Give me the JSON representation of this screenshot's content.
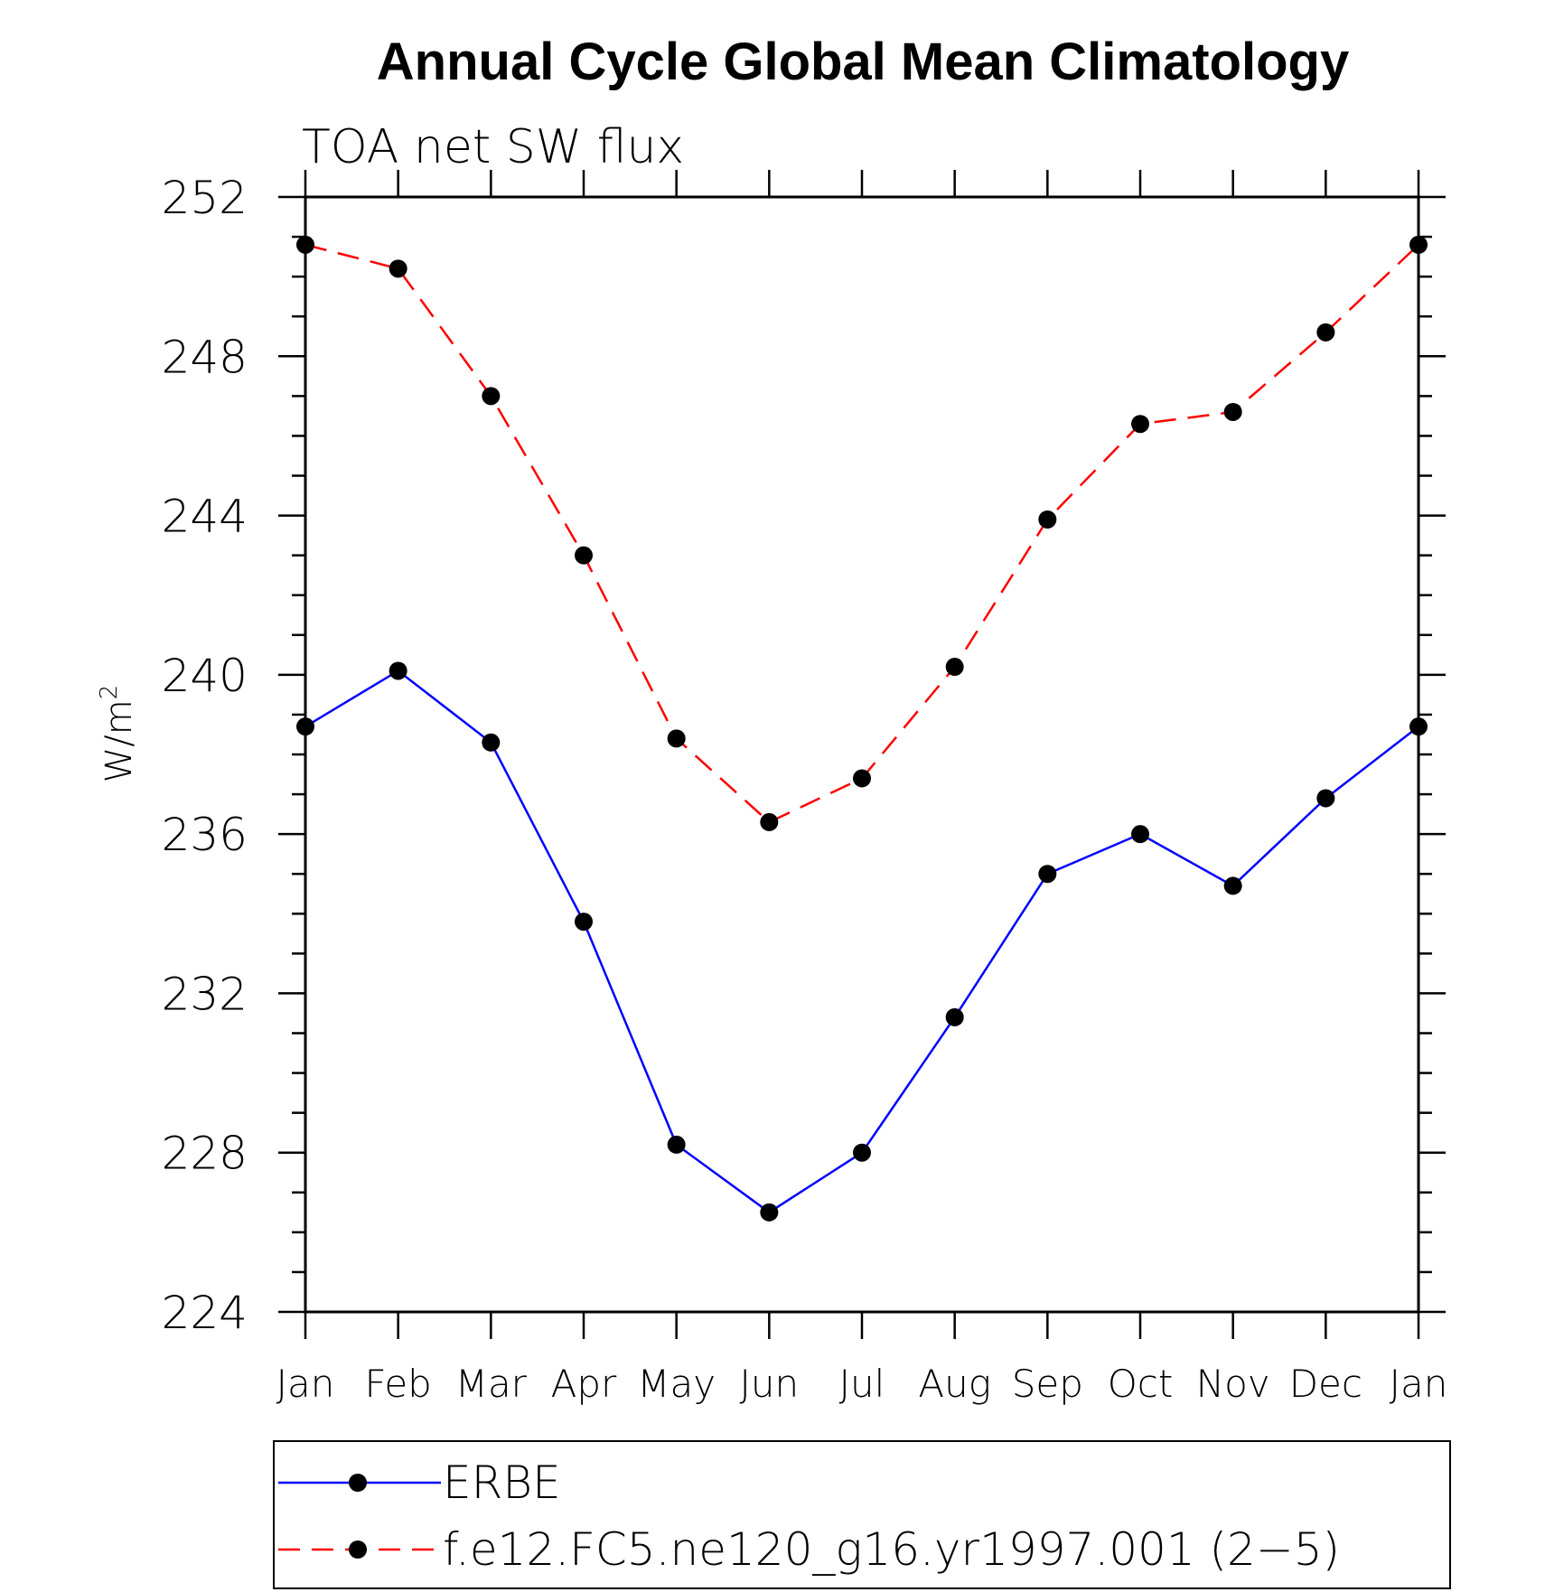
{
  "chart_data": {
    "type": "line",
    "title": "Annual Cycle Global Mean Climatology",
    "subtitle": "TOA net SW flux",
    "ylabel": "W/m",
    "ylabel_superscript": "2",
    "xlabel": "",
    "categories": [
      "Jan",
      "Feb",
      "Mar",
      "Apr",
      "May",
      "Jun",
      "Jul",
      "Aug",
      "Sep",
      "Oct",
      "Nov",
      "Dec",
      "Jan"
    ],
    "ylim": [
      224,
      252
    ],
    "yticks": [
      224,
      228,
      232,
      236,
      240,
      244,
      248,
      252
    ],
    "legend_position": "bottom",
    "series": [
      {
        "name": "ERBE",
        "color": "#0000ff",
        "dash": "solid",
        "values": [
          238.7,
          240.1,
          238.3,
          233.8,
          228.2,
          226.5,
          228.0,
          231.4,
          235.0,
          236.0,
          234.7,
          236.9,
          238.7
        ]
      },
      {
        "name": "f.e12.FC5.ne120_g16.yr1997.001 (2−5)",
        "color": "#ff0000",
        "dash": "dashed",
        "values": [
          250.8,
          250.2,
          247.0,
          243.0,
          238.4,
          236.3,
          237.4,
          240.2,
          243.9,
          246.3,
          246.6,
          248.6,
          250.8
        ]
      }
    ]
  }
}
